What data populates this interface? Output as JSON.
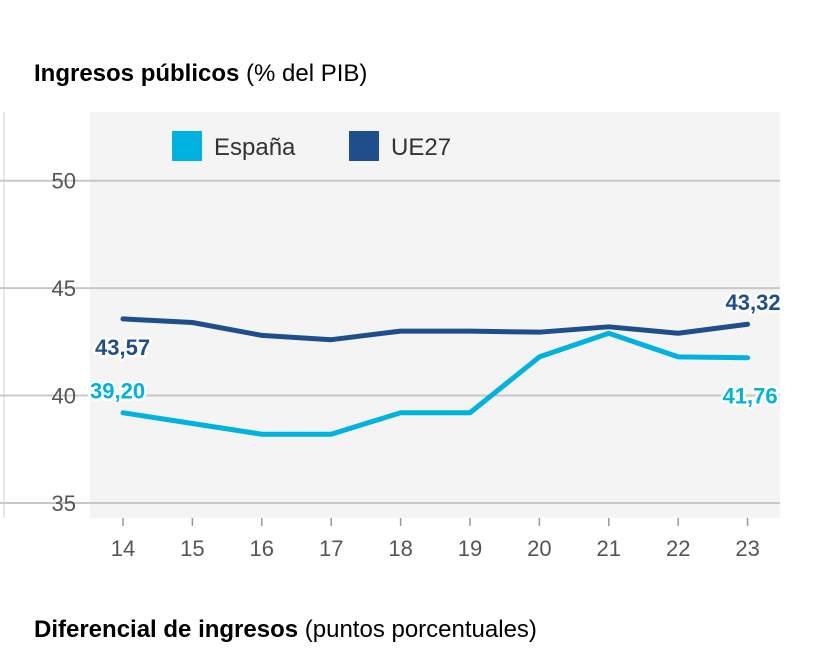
{
  "title1": {
    "bold": "Ingresos públicos",
    "unit": "(% del PIB)"
  },
  "title2": {
    "bold": "Diferencial de ingresos",
    "unit": "(puntos porcentuales)"
  },
  "colors": {
    "espana": "#00b2e0",
    "ue27": "#1f4e8c",
    "plot_bg": "#f4f4f4",
    "grid": "#c8c8c8"
  },
  "chart_data": {
    "type": "line",
    "title": "Ingresos públicos (% del PIB)",
    "x": [
      "14",
      "15",
      "16",
      "17",
      "18",
      "19",
      "20",
      "21",
      "22",
      "23"
    ],
    "series": [
      {
        "name": "España",
        "values": [
          39.2,
          38.7,
          38.2,
          38.2,
          39.2,
          39.2,
          41.8,
          42.9,
          41.8,
          41.76
        ]
      },
      {
        "name": "UE27",
        "values": [
          43.57,
          43.4,
          42.8,
          42.6,
          43.0,
          43.0,
          42.95,
          43.2,
          42.9,
          43.32
        ]
      }
    ],
    "y_ticks": [
      "35",
      "40",
      "45",
      "50"
    ],
    "ylim": [
      34.3,
      53.2
    ],
    "grid": true,
    "legend": "top-left",
    "annotations": [
      {
        "series": 0,
        "index": 0,
        "text": "39,20"
      },
      {
        "series": 0,
        "index": 9,
        "text": "41,76"
      },
      {
        "series": 1,
        "index": 0,
        "text": "43,57"
      },
      {
        "series": 1,
        "index": 9,
        "text": "43,32"
      }
    ]
  }
}
